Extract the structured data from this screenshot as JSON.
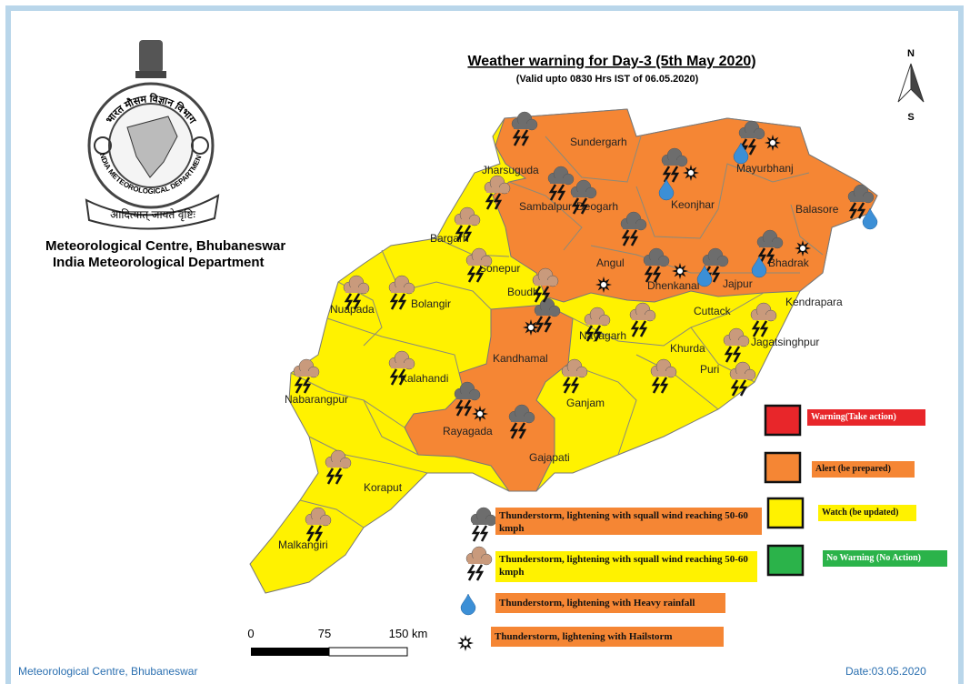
{
  "header": {
    "title": "Weather warning for  Day-3 (5th May 2020)",
    "subtitle": "(Valid upto 0830 Hrs IST of 06.05.2020)"
  },
  "logo": {
    "hindi_name": "भारत मौसम विज्ञान विभाग",
    "english_name": "INDIA METEOROLOGICAL DEPARTMENT",
    "motto": "आदित्यात् जायते वृष्टिः"
  },
  "office": {
    "centre": "Meteorological Centre, Bhubaneswar",
    "department": "India Meteorological Department"
  },
  "compass": {
    "north": "N",
    "south": "S"
  },
  "districts": [
    "Sundergarh",
    "Jharsuguda",
    "Sambalpur",
    "Deogarh",
    "Keonjhar",
    "Mayurbhanj",
    "Balasore",
    "Bhadrak",
    "Bargarh",
    "Sonepur",
    "Angul",
    "Dhenkanal",
    "Jajpur",
    "Kendrapara",
    "Nuapada",
    "Bolangir",
    "Boudh",
    "Cuttack",
    "Nayagarh",
    "Khurda",
    "Jagatsinghpur",
    "Kandhamal",
    "Puri",
    "Kalahandi",
    "Nabarangpur",
    "Ganjam",
    "Rayagada",
    "Gajapati",
    "Koraput",
    "Malkangiri"
  ],
  "warning_legend": [
    {
      "label": "Warning(Take action)",
      "color": "#e8262a"
    },
    {
      "label": "Alert (be prepared)",
      "color": "#f58634"
    },
    {
      "label": "Watch (be updated)",
      "color": "#fff200"
    },
    {
      "label": "No Warning (No Action)",
      "color": "#2bb34a"
    }
  ],
  "symbol_legend": [
    "Thunderstorm, lightening with squall wind reaching 50-60 kmph",
    "Thunderstorm, lightening with squall wind reaching 50-60 kmph",
    "Thunderstorm, lightening with Heavy rainfall",
    "Thunderstorm, lightening with Hailstorm"
  ],
  "scale": {
    "labels": [
      "0",
      "75",
      "150 km"
    ]
  },
  "footer": {
    "left": "Meteorological Centre, Bhubaneswar",
    "date": "Date:03.05.2020"
  }
}
